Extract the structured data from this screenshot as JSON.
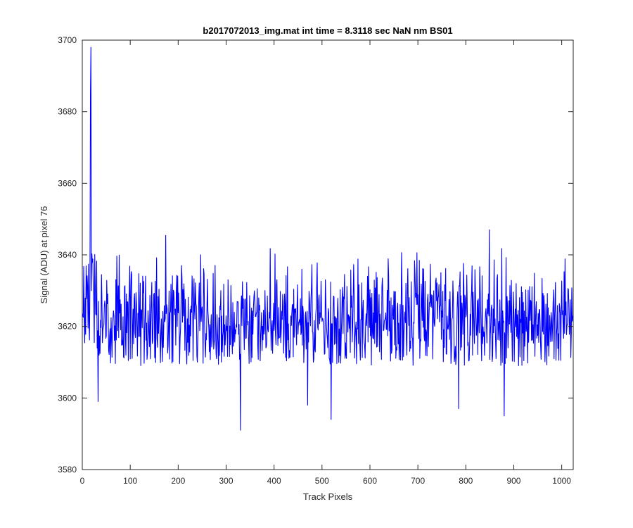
{
  "chart_data": {
    "type": "line",
    "title": "b2017072013_img.mat int time = 8.3118 sec  NaN nm BS01",
    "xlabel": "Track Pixels",
    "ylabel": "Signal (ADU) at pixel 76",
    "xlim": [
      0,
      1024
    ],
    "ylim": [
      3580,
      3700
    ],
    "xticks": [
      0,
      100,
      200,
      300,
      400,
      500,
      600,
      700,
      800,
      900,
      1000
    ],
    "yticks": [
      3580,
      3600,
      3620,
      3640,
      3660,
      3680,
      3700
    ],
    "grid": false,
    "legend": "none",
    "series": [
      {
        "color": "#0000ff",
        "n_points": 1024,
        "baseline_mean": 3622,
        "baseline_noise_range": [
          3609,
          3646
        ],
        "spikes": [
          {
            "x": 18,
            "y": 3698
          },
          {
            "x": 33,
            "y": 3599
          },
          {
            "x": 330,
            "y": 3591
          },
          {
            "x": 470,
            "y": 3598
          },
          {
            "x": 519,
            "y": 3594
          },
          {
            "x": 785,
            "y": 3597
          },
          {
            "x": 849,
            "y": 3647
          },
          {
            "x": 880,
            "y": 3595
          }
        ]
      }
    ]
  }
}
